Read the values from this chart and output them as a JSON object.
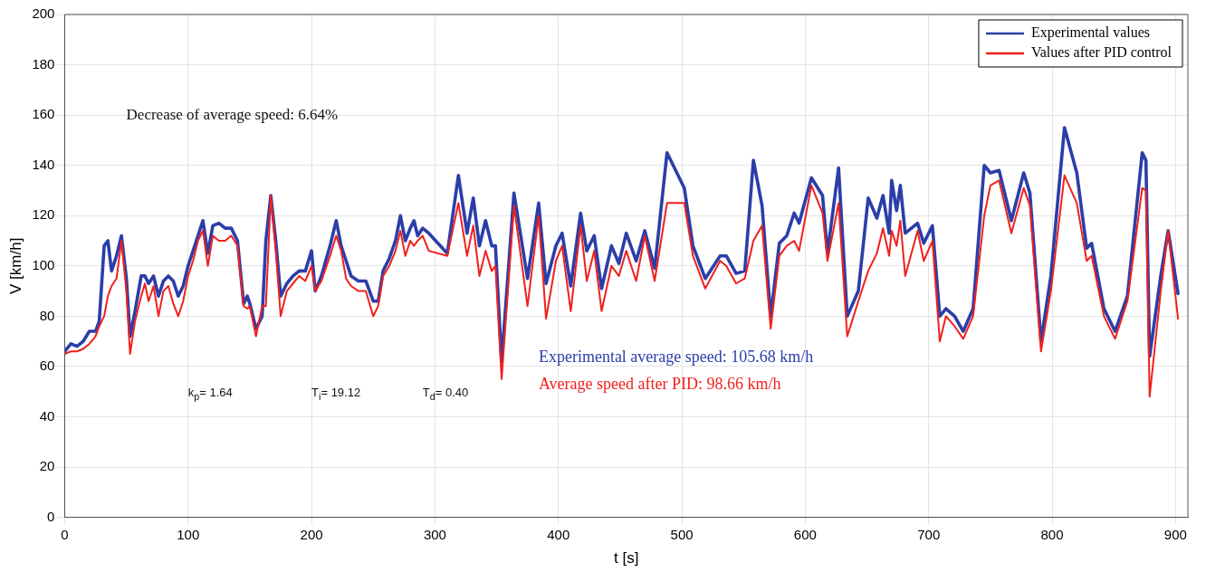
{
  "chart_data": {
    "type": "line",
    "xlabel": "t [s]",
    "ylabel": "V [km/h]",
    "xlim": [
      0,
      910
    ],
    "xticks": [
      0,
      100,
      200,
      300,
      400,
      500,
      600,
      700,
      800,
      900
    ],
    "ylim": [
      0,
      200
    ],
    "yticks": [
      0,
      20,
      40,
      60,
      80,
      100,
      120,
      140,
      160,
      180,
      200
    ],
    "grid": true,
    "legend": "top right",
    "marker": "none",
    "line_style": "solid",
    "x": [
      0,
      5,
      10,
      15,
      20,
      25,
      28,
      32,
      35,
      38,
      42,
      46,
      50,
      53,
      57,
      62,
      65,
      68,
      72,
      76,
      80,
      84,
      88,
      92,
      96,
      100,
      104,
      108,
      112,
      116,
      120,
      125,
      130,
      135,
      140,
      145,
      148,
      150,
      155,
      160,
      163,
      167,
      171,
      175,
      180,
      185,
      190,
      195,
      200,
      203,
      208,
      215,
      220,
      224,
      228,
      232,
      238,
      244,
      250,
      254,
      258,
      263,
      268,
      272,
      276,
      280,
      283,
      286,
      290,
      295,
      310,
      319,
      326,
      331,
      336,
      341,
      346,
      349,
      354,
      364,
      375,
      384,
      390,
      398,
      403,
      410,
      418,
      423,
      429,
      435,
      443,
      449,
      455,
      463,
      470,
      478,
      488,
      502,
      509,
      519,
      531,
      536,
      544,
      551,
      558,
      565,
      572,
      579,
      585,
      591,
      595,
      605,
      614,
      618,
      627,
      634,
      643,
      651,
      658,
      663,
      668,
      670,
      674,
      677,
      681,
      691,
      696,
      703,
      709,
      714,
      721,
      728,
      736,
      745,
      750,
      757,
      767,
      777,
      782,
      791,
      799,
      810,
      820,
      828,
      832,
      842,
      851,
      861,
      873,
      876,
      879,
      888,
      894,
      902
    ],
    "series": [
      {
        "name": "Experimental values",
        "color": "#2b3ea8",
        "values": [
          66,
          69,
          68,
          70,
          74,
          74,
          78,
          108,
          110,
          98,
          104,
          112,
          95,
          72,
          82,
          96,
          96,
          93,
          96,
          88,
          94,
          96,
          94,
          88,
          92,
          100,
          106,
          112,
          118,
          105,
          116,
          117,
          115,
          115,
          110,
          85,
          88,
          85,
          75,
          80,
          110,
          128,
          110,
          88,
          93,
          96,
          98,
          98,
          106,
          90,
          96,
          108,
          118,
          108,
          102,
          96,
          94,
          94,
          86,
          86,
          98,
          103,
          110,
          120,
          110,
          115,
          118,
          112,
          115,
          113,
          105,
          136,
          113,
          127,
          108,
          118,
          108,
          108,
          62,
          129,
          95,
          125,
          93,
          108,
          113,
          92,
          121,
          106,
          112,
          91,
          108,
          101,
          113,
          102,
          114,
          99,
          145,
          131,
          108,
          95,
          104,
          104,
          97,
          98,
          142,
          124,
          80,
          109,
          112,
          121,
          117,
          135,
          128,
          105,
          139,
          80,
          90,
          127,
          119,
          128,
          113,
          134,
          122,
          132,
          113,
          117,
          109,
          116,
          80,
          83,
          80,
          74,
          83,
          140,
          137,
          138,
          118,
          137,
          129,
          70,
          96,
          155,
          137,
          107,
          109,
          83,
          74,
          88,
          145,
          142,
          64,
          96,
          114,
          89
        ]
      },
      {
        "name": "Values after PID control",
        "color": "#f0201c",
        "values": [
          65,
          66,
          66,
          67,
          69,
          72,
          76,
          80,
          88,
          92,
          95,
          110,
          90,
          65,
          78,
          88,
          93,
          86,
          92,
          80,
          90,
          92,
          85,
          80,
          86,
          96,
          102,
          110,
          114,
          100,
          112,
          110,
          110,
          112,
          108,
          84,
          83,
          84,
          72,
          84,
          84,
          128,
          106,
          80,
          90,
          93,
          96,
          94,
          100,
          90,
          94,
          104,
          112,
          106,
          95,
          92,
          90,
          90,
          80,
          84,
          96,
          100,
          106,
          114,
          104,
          110,
          108,
          110,
          112,
          106,
          104,
          125,
          104,
          116,
          96,
          106,
          98,
          100,
          55,
          124,
          84,
          120,
          79,
          102,
          108,
          82,
          116,
          94,
          106,
          82,
          100,
          96,
          106,
          94,
          112,
          94,
          125,
          125,
          104,
          91,
          102,
          100,
          93,
          95,
          110,
          116,
          75,
          104,
          108,
          110,
          106,
          132,
          121,
          102,
          125,
          72,
          86,
          98,
          105,
          115,
          104,
          114,
          108,
          118,
          96,
          114,
          102,
          110,
          70,
          80,
          76,
          71,
          80,
          120,
          132,
          134,
          113,
          131,
          124,
          66,
          90,
          136,
          125,
          102,
          104,
          80,
          71,
          86,
          131,
          130,
          48,
          90,
          114,
          79
        ]
      }
    ],
    "annotations": [
      "Decrease of average speed: 6.64%",
      "Experimental average speed: 105.68 km/h",
      "Average speed after PID: 98.66 km/h",
      "k$_{p}$= 1.64",
      "T$_{i}$= 19.12",
      "T$_{d}$= 0.40"
    ]
  }
}
